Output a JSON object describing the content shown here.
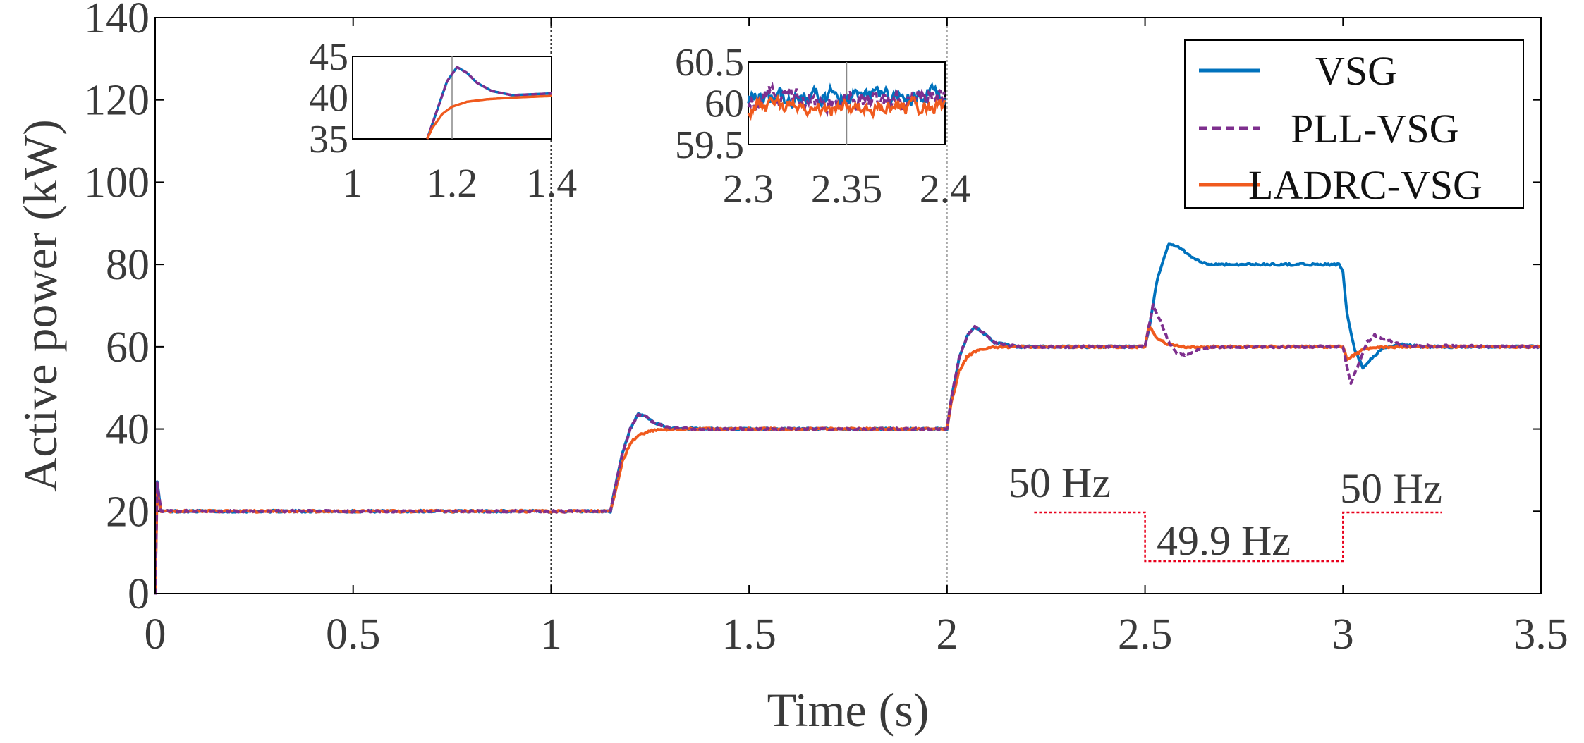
{
  "chart_data": [
    {
      "type": "line",
      "role": "main",
      "xlabel": "Time (s)",
      "ylabel": "Active power (kW)",
      "xlim": [
        0,
        3.5
      ],
      "ylim": [
        0,
        140
      ],
      "xticks": [
        0,
        0.5,
        1,
        1.5,
        2,
        2.5,
        3,
        3.5
      ],
      "xtick_labels": [
        "0",
        "0.5",
        "1",
        "1.5",
        "2",
        "2.5",
        "3",
        "3.5"
      ],
      "yticks": [
        0,
        20,
        40,
        60,
        80,
        100,
        120,
        140
      ],
      "ytick_labels": [
        "0",
        "20",
        "40",
        "60",
        "80",
        "100",
        "120",
        "140"
      ],
      "vertical_markers": [
        1,
        2
      ],
      "legend_position": "top-right",
      "series": [
        {
          "name": "VSG",
          "color": "#0072BD",
          "style": "solid",
          "x": [
            0,
            0.005,
            0.015,
            1.15,
            1.16,
            1.18,
            1.2,
            1.22,
            1.24,
            1.26,
            1.3,
            1.4,
            2.0,
            2.01,
            2.03,
            2.05,
            2.07,
            2.09,
            2.12,
            2.18,
            2.5,
            2.51,
            2.53,
            2.56,
            2.59,
            2.62,
            2.66,
            2.72,
            2.9,
            2.99,
            3.0,
            3.01,
            3.03,
            3.05,
            3.07,
            3.1,
            3.15,
            3.2,
            3.5
          ],
          "y": [
            0,
            27,
            20,
            20,
            25,
            34,
            40,
            43.5,
            43,
            41.5,
            40.2,
            40,
            40,
            47,
            57,
            62.5,
            64.8,
            63.5,
            61,
            60,
            60,
            64,
            76,
            85,
            84,
            81.5,
            80,
            80,
            80,
            80,
            78,
            68,
            59,
            55,
            57,
            59.5,
            60.5,
            60,
            60
          ]
        },
        {
          "name": "PLL-VSG",
          "color": "#7E2F8E",
          "style": "dashed",
          "x": [
            0,
            0.005,
            0.015,
            1.15,
            1.16,
            1.18,
            1.2,
            1.22,
            1.24,
            1.26,
            1.3,
            1.4,
            2.0,
            2.01,
            2.03,
            2.05,
            2.07,
            2.09,
            2.12,
            2.18,
            2.5,
            2.51,
            2.52,
            2.54,
            2.56,
            2.58,
            2.6,
            2.64,
            2.7,
            3.0,
            3.01,
            3.02,
            3.04,
            3.06,
            3.08,
            3.1,
            3.15,
            3.5
          ],
          "y": [
            0,
            27,
            20,
            20,
            25,
            34,
            40,
            43.5,
            43,
            41.5,
            40.2,
            40,
            40,
            47,
            57,
            62.5,
            64.8,
            63.5,
            61,
            60,
            60,
            65,
            70,
            66,
            61,
            58.5,
            58,
            59.5,
            60,
            60,
            55,
            51,
            56,
            61,
            62.8,
            62,
            60.3,
            60
          ]
        },
        {
          "name": "LADRC-VSG",
          "color": "#F05A1E",
          "style": "solid",
          "x": [
            0,
            0.005,
            0.015,
            1.15,
            1.16,
            1.18,
            1.2,
            1.22,
            1.25,
            1.3,
            1.4,
            2.0,
            2.01,
            2.03,
            2.05,
            2.08,
            2.12,
            2.2,
            2.5,
            2.51,
            2.53,
            2.56,
            2.6,
            2.7,
            3.0,
            3.01,
            3.03,
            3.05,
            3.08,
            3.15,
            3.5
          ],
          "y": [
            0,
            25,
            20,
            20,
            24,
            32,
            36.5,
            38.5,
            39.5,
            40,
            40,
            40,
            46,
            54,
            57.5,
            59.3,
            59.9,
            60,
            60,
            65,
            62,
            60.5,
            60,
            60,
            60,
            57,
            58,
            59.3,
            59.8,
            60,
            60
          ]
        }
      ]
    },
    {
      "type": "line",
      "role": "inset",
      "xlim": [
        1,
        1.4
      ],
      "ylim": [
        35,
        45
      ],
      "xticks": [
        1,
        1.2,
        1.4
      ],
      "xtick_labels": [
        "1",
        "1.2",
        "1.4"
      ],
      "yticks": [
        35,
        40,
        45
      ],
      "ytick_labels": [
        "35",
        "40",
        "45"
      ],
      "series": [
        {
          "name": "VSG",
          "x": [
            1.15,
            1.17,
            1.19,
            1.21,
            1.23,
            1.25,
            1.28,
            1.32,
            1.4
          ],
          "y": [
            35,
            38.5,
            42,
            43.7,
            43,
            41.8,
            40.8,
            40.3,
            40.5
          ]
        },
        {
          "name": "PLL-VSG",
          "x": [
            1.15,
            1.17,
            1.19,
            1.21,
            1.23,
            1.25,
            1.28,
            1.32,
            1.4
          ],
          "y": [
            35,
            38.5,
            42,
            43.7,
            43,
            41.8,
            40.8,
            40.3,
            40.5
          ]
        },
        {
          "name": "LADRC-VSG",
          "x": [
            1.15,
            1.16,
            1.18,
            1.2,
            1.23,
            1.27,
            1.32,
            1.4
          ],
          "y": [
            35,
            36.3,
            38,
            38.9,
            39.5,
            39.8,
            40,
            40.2
          ]
        }
      ]
    },
    {
      "type": "line",
      "role": "inset",
      "xlim": [
        2.3,
        2.4
      ],
      "ylim": [
        59.5,
        60.5
      ],
      "xticks": [
        2.3,
        2.35,
        2.4
      ],
      "xtick_labels": [
        "2.3",
        "2.35",
        "2.4"
      ],
      "yticks": [
        59.5,
        60,
        60.5
      ],
      "ytick_labels": [
        "59.5",
        "60",
        "60.5"
      ],
      "series": [
        {
          "name": "VSG",
          "level": 60.08,
          "noise": 0.1
        },
        {
          "name": "PLL-VSG",
          "level": 60.05,
          "noise": 0.12
        },
        {
          "name": "LADRC-VSG",
          "level": 59.95,
          "noise": 0.09
        }
      ]
    }
  ],
  "annotations": {
    "freq_left": "50 Hz",
    "freq_mid": "49.9 Hz",
    "freq_right": "50 Hz",
    "freq_color": "#E8001C",
    "freq_profile": {
      "x": [
        2.22,
        2.5,
        2.5,
        3.0,
        3.0,
        3.25
      ],
      "y": [
        50,
        50,
        49.9,
        49.9,
        50,
        50
      ]
    }
  }
}
